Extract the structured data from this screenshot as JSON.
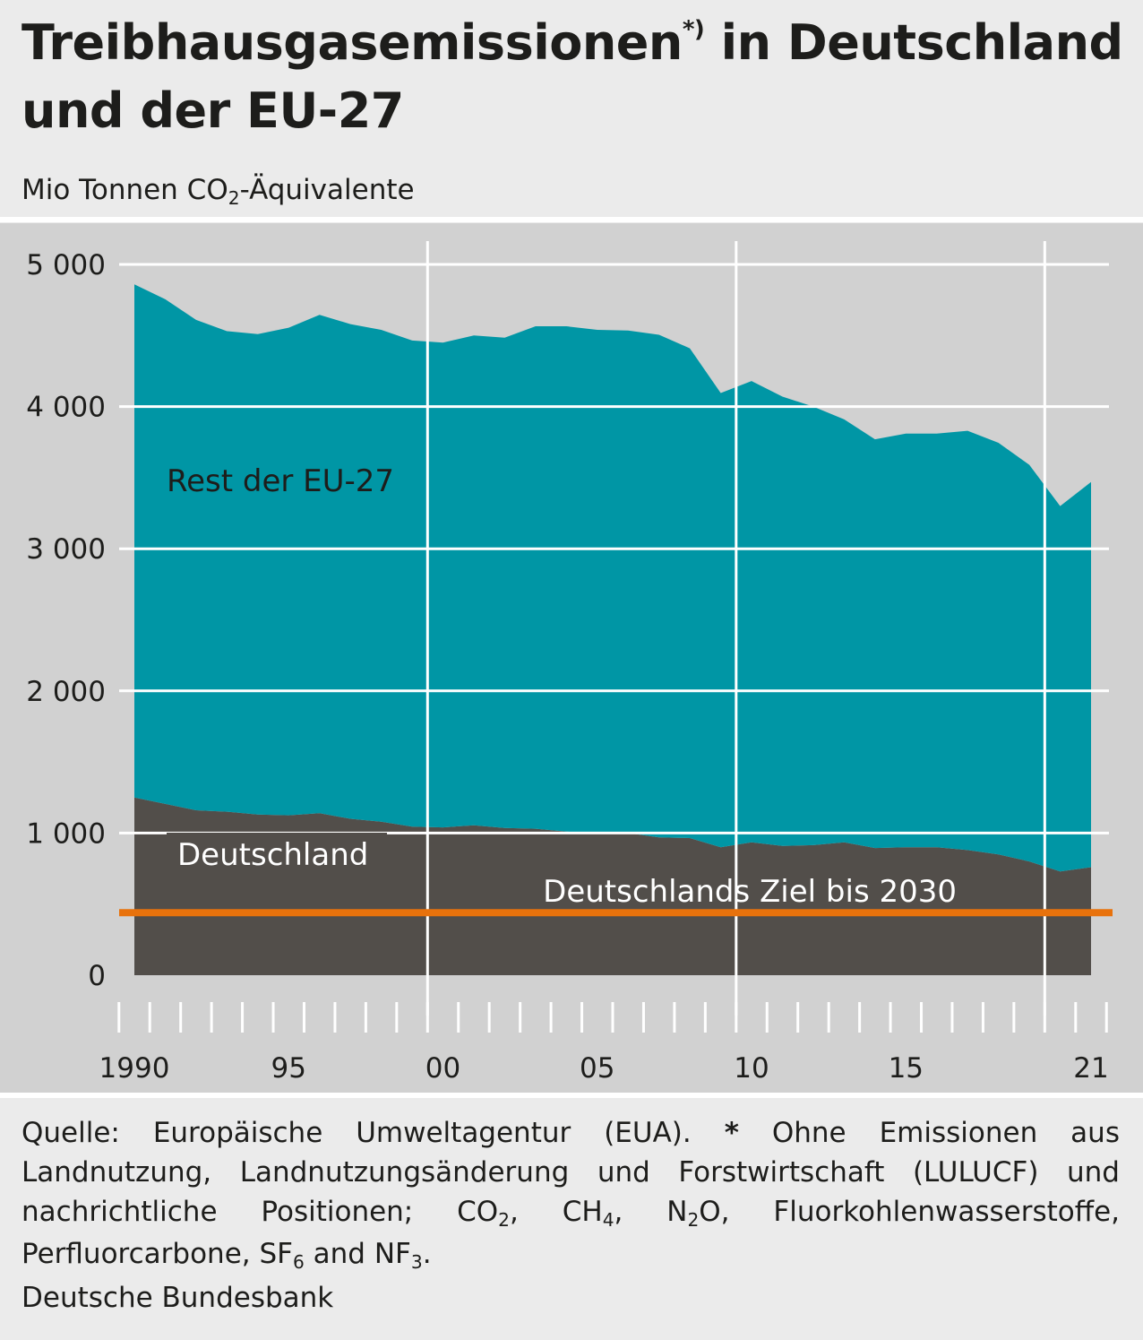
{
  "title_line1": "Treibhausgasemissionen",
  "title_mark": "*)",
  "title_line1_rest": " in Deutschland",
  "title_line2": "und der EU-27",
  "unit": {
    "pre": "Mio Tonnen CO",
    "sub": "2",
    "post": "-Äquivalente"
  },
  "footer": {
    "source": "Quelle: Europäische Umweltagentur (EUA).",
    "star": "*",
    "note_a": " Ohne Emissionen aus Landnutzung, Landnutzungsänderung und Forstwirtschaft (LULUCF) und nachrichtliche Positionen; CO",
    "note_b": ", CH",
    "note_c": ", N",
    "note_d": "O, Fluorkohlenwasserstoffe, Perfluorcarbone, SF",
    "note_e": " and NF",
    "note_f": ".",
    "sub2": "2",
    "sub4": "4",
    "sub6": "6",
    "sub3": "3",
    "org": "Deutsche Bundesbank"
  },
  "chart_data": {
    "type": "area",
    "stacked": true,
    "ylim": [
      0,
      5000
    ],
    "yticks": [
      0,
      1000,
      2000,
      3000,
      4000,
      5000
    ],
    "ytick_labels": [
      "0",
      "1 000",
      "2 000",
      "3 000",
      "4 000",
      "5 000"
    ],
    "x": [
      1990,
      1991,
      1992,
      1993,
      1994,
      1995,
      1996,
      1997,
      1998,
      1999,
      2000,
      2001,
      2002,
      2003,
      2004,
      2005,
      2006,
      2007,
      2008,
      2009,
      2010,
      2011,
      2012,
      2013,
      2014,
      2015,
      2016,
      2017,
      2018,
      2019,
      2020,
      2021
    ],
    "xtick_values": [
      1990,
      1995,
      2000,
      2005,
      2010,
      2015,
      2021
    ],
    "xtick_labels": [
      "1990",
      "95",
      "00",
      "05",
      "10",
      "15",
      "21"
    ],
    "series": [
      {
        "name": "Deutschland",
        "color": "#524e4a",
        "values": [
          1250,
          1205,
          1160,
          1150,
          1130,
          1125,
          1140,
          1100,
          1080,
          1045,
          1040,
          1055,
          1035,
          1030,
          1010,
          995,
          1000,
          970,
          965,
          900,
          935,
          910,
          915,
          935,
          895,
          900,
          900,
          880,
          850,
          800,
          730,
          760
        ]
      },
      {
        "name": "Rest der EU-27",
        "color": "#0096a5",
        "values": [
          3610,
          3550,
          3450,
          3380,
          3380,
          3430,
          3505,
          3480,
          3460,
          3420,
          3410,
          3445,
          3450,
          3535,
          3555,
          3545,
          3535,
          3535,
          3445,
          3195,
          3245,
          3160,
          3085,
          2975,
          2875,
          2910,
          2910,
          2950,
          2895,
          2790,
          2570,
          2710
        ]
      }
    ],
    "annotations": {
      "eu_label": "Rest der EU-27",
      "de_label": "Deutschland",
      "target_label": "Deutschlands Ziel bis 2030"
    },
    "target": {
      "value": 440,
      "color": "#e8720c"
    },
    "grid": true,
    "colors": {
      "plot_bg": "#d1d1d1",
      "grid": "#ffffff"
    }
  }
}
